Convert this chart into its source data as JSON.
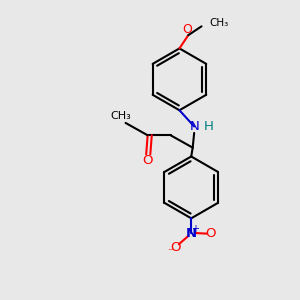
{
  "bg_color": "#e8e8e8",
  "bond_color": "#000000",
  "o_color": "#ff0000",
  "n_color": "#0000cc",
  "h_color": "#008080",
  "line_width": 1.5,
  "fig_size": [
    3.0,
    3.0
  ],
  "dpi": 100,
  "xlim": [
    0,
    10
  ],
  "ylim": [
    0,
    10
  ]
}
